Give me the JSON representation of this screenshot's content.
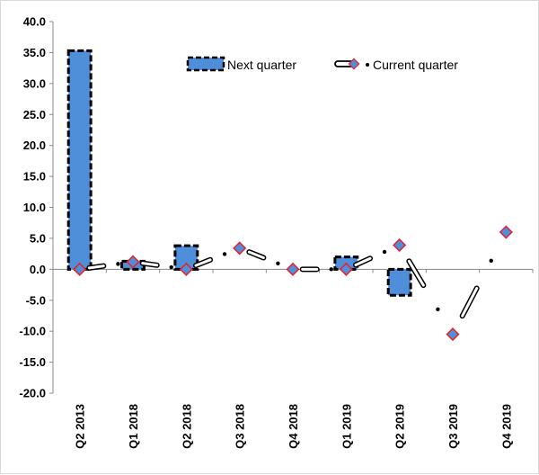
{
  "chart_data": {
    "type": "bar",
    "categories": [
      "Q2 2013",
      "Q1 2018",
      "Q2 2018",
      "Q3 2018",
      "Q4 2018",
      "Q1 2019",
      "Q2 2019",
      "Q3 2019",
      "Q4 2019"
    ],
    "series": [
      {
        "name": "Next quarter",
        "type": "bar",
        "values": [
          35.3,
          1.3,
          3.8,
          0.0,
          0.0,
          2.0,
          -4.2,
          0.0,
          0.0
        ]
      },
      {
        "name": "Current quarter",
        "type": "line",
        "values": [
          0.0,
          1.2,
          0.0,
          3.4,
          0.0,
          0.0,
          3.9,
          -10.5,
          6.0
        ]
      }
    ],
    "ylim": [
      -20.0,
      40.0
    ],
    "yticks": [
      "40.0",
      "35.0",
      "30.0",
      "25.0",
      "20.0",
      "15.0",
      "10.0",
      "5.0",
      "0.0",
      "-5.0",
      "-10.0",
      "-15.0",
      "-20.0"
    ],
    "grid": false,
    "legend_position": "top-right",
    "colors": {
      "bar_fill": "#4f8fd9",
      "bar_border": "#000000",
      "marker_fill": "#4f8fd9",
      "marker_border": "#e8202a",
      "line": "#000000"
    }
  }
}
